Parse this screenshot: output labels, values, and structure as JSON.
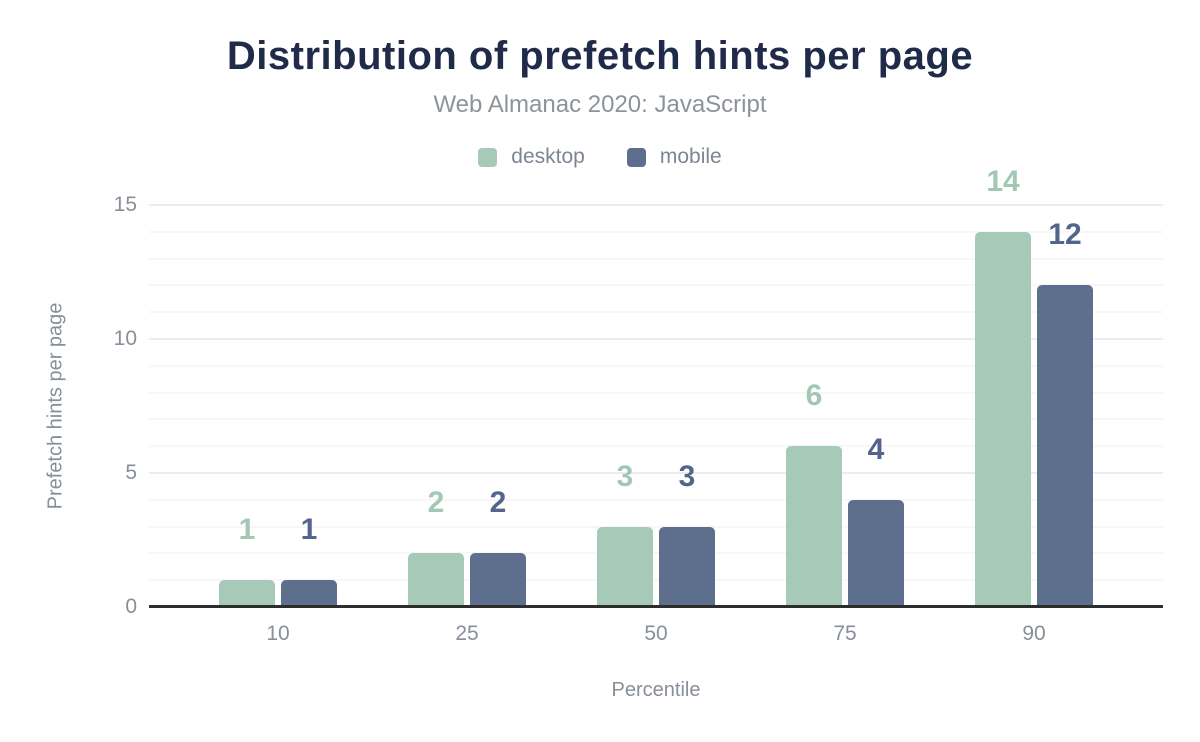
{
  "header": {
    "title": "Distribution of prefetch hints per page",
    "subtitle": "Web Almanac 2020: JavaScript"
  },
  "chart_data": {
    "type": "bar",
    "title": "Distribution of prefetch hints per page",
    "subtitle": "Web Almanac 2020: JavaScript",
    "categories": [
      "10",
      "25",
      "50",
      "75",
      "90"
    ],
    "series": [
      {
        "name": "desktop",
        "values": [
          1,
          2,
          3,
          6,
          14
        ],
        "color": "#a7c9b8",
        "label_color": "#a2c7b4"
      },
      {
        "name": "mobile",
        "values": [
          1,
          2,
          3,
          4,
          12
        ],
        "color": "#5d6f8c",
        "label_color": "#54658c"
      }
    ],
    "xlabel": "Percentile",
    "ylabel": "Prefetch hints per page",
    "ylim": [
      0,
      15
    ],
    "yticks": [
      0,
      5,
      10,
      15
    ],
    "grid": "horizontal; faint minor line every 1 unit, slightly darker major line every 5 units",
    "legend_position": "top-center",
    "colors": {
      "background": "#ffffff",
      "title_text": "#1f2b49",
      "subtitle_text": "#8e9398",
      "axis_text": "#878f98",
      "legend_text": "#7d8694",
      "axis_baseline": "#2d2d2d",
      "grid_minor": "#f7f7f8",
      "grid_major": "#ececee"
    }
  }
}
